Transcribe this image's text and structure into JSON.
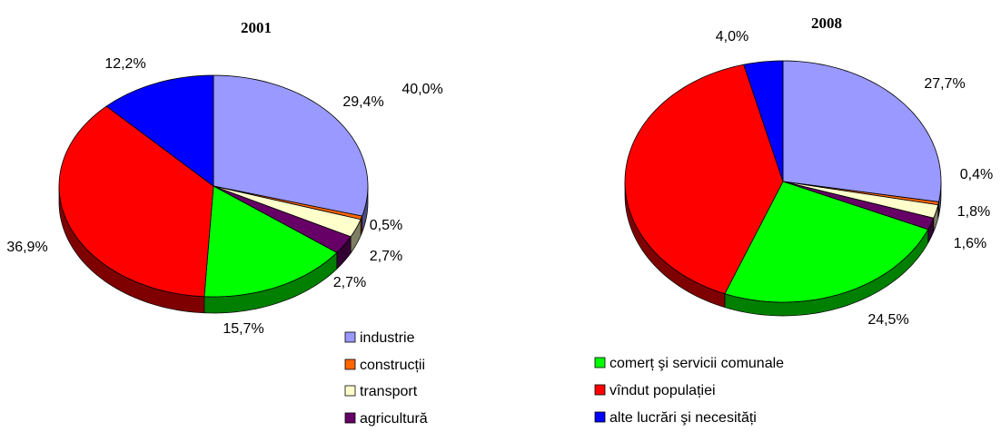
{
  "chart_data": [
    {
      "type": "pie",
      "title": "2001",
      "values": [
        29.4,
        0.5,
        2.7,
        2.7,
        15.7,
        36.9,
        12.2
      ],
      "value_labels": [
        "29,4%",
        "0,5%",
        "2,7%",
        "2,7%",
        "15,7%",
        "36,9%",
        "12,2%"
      ]
    },
    {
      "type": "pie",
      "title": "2008",
      "values": [
        27.7,
        0.4,
        1.8,
        1.6,
        24.5,
        40.0,
        4.0
      ],
      "value_labels": [
        "27,7%",
        "0,4%",
        "1,8%",
        "1,6%",
        "24,5%",
        "40,0%",
        "4,0%"
      ]
    }
  ],
  "legend": {
    "categories": [
      "industrie",
      "construcții",
      "transport",
      "agricultură",
      "comerț şi servicii comunale",
      "vîndut populației",
      "alte lucrări şi necesități"
    ],
    "colors": [
      "#9999ff",
      "#ff6600",
      "#ffffcc",
      "#660066",
      "#00ff00",
      "#ff0000",
      "#0000ff"
    ]
  }
}
